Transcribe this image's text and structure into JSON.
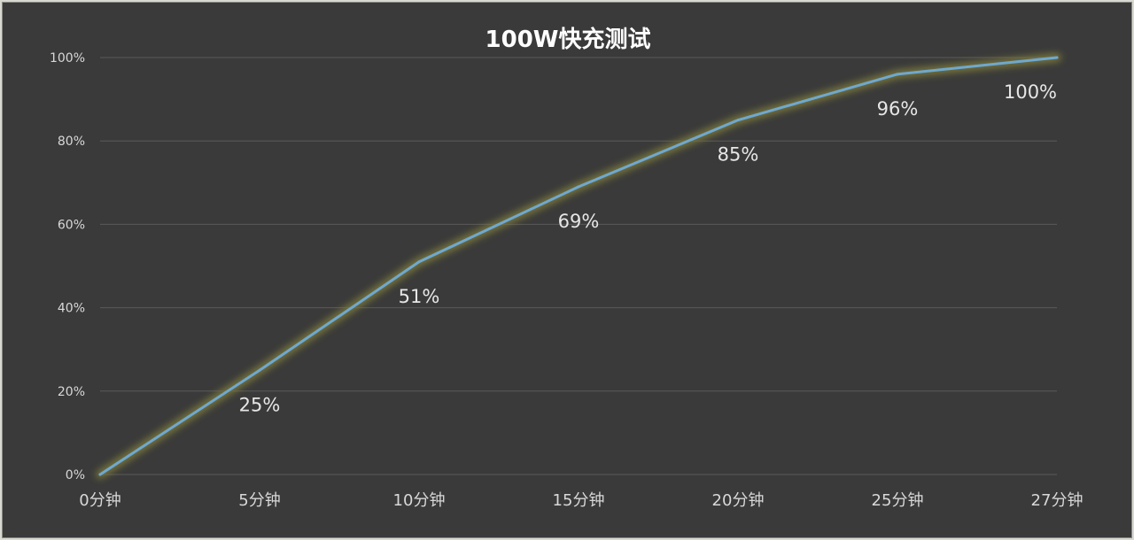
{
  "chart_data": {
    "type": "line",
    "title": "100W快充测试",
    "categories": [
      "0分钟",
      "5分钟",
      "10分钟",
      "15分钟",
      "20分钟",
      "25分钟",
      "27分钟"
    ],
    "series": [
      {
        "values": [
          0,
          25,
          51,
          69,
          85,
          96,
          100
        ]
      }
    ],
    "data_labels": [
      "25%",
      "51%",
      "69%",
      "85%",
      "96%",
      "100%"
    ],
    "yticks": [
      "0%",
      "20%",
      "40%",
      "60%",
      "80%",
      "100%"
    ],
    "ylim": [
      0,
      100
    ],
    "grid": true,
    "legend": "none",
    "colors": {
      "background": "#3a3a3a",
      "line": "#6fa8cf",
      "glow": "#7d7a3e",
      "grid": "#5a5a5a"
    }
  }
}
